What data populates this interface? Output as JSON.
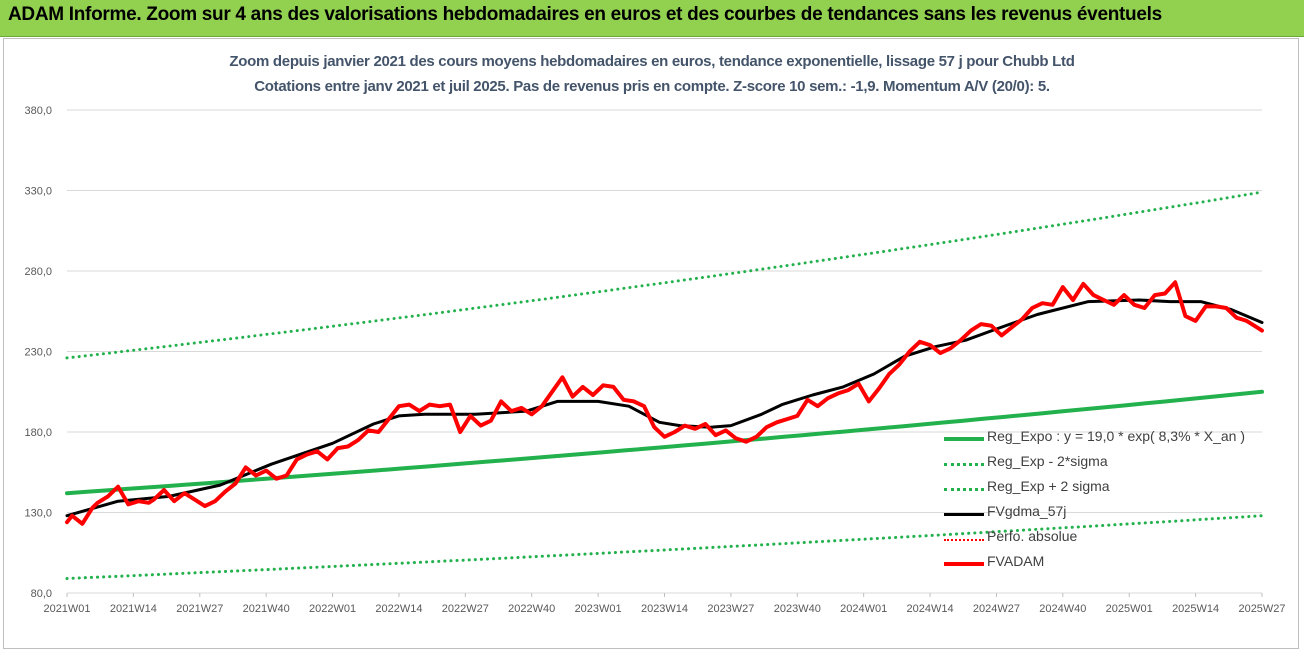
{
  "header": {
    "title": "ADAM Informe. Zoom sur 4 ans des valorisations hebdomadaires en euros et des courbes de tendances sans les revenus éventuels"
  },
  "chart_data": {
    "type": "line",
    "title": "Zoom depuis janvier 2021 des cours moyens hebdomadaires en euros, tendance exponentielle, lissage 57 j pour Chubb Ltd",
    "subtitle": "Cotations entre janv 2021 et juil 2025. Pas de revenus pris en compte. Z-score 10 sem.: -1,9. Momentum A/V (20/0): 5.",
    "ylim": [
      80,
      380
    ],
    "y_ticks": [
      "80,0",
      "130,0",
      "180,0",
      "230,0",
      "280,0",
      "330,0",
      "380,0"
    ],
    "x_ticks": [
      "2021W01",
      "2021W14",
      "2021W27",
      "2021W40",
      "2022W01",
      "2022W14",
      "2022W27",
      "2022W40",
      "2023W01",
      "2023W14",
      "2023W27",
      "2023W40",
      "2024W01",
      "2024W14",
      "2024W27",
      "2024W40",
      "2025W01",
      "2025W14",
      "2025W27"
    ],
    "x_range_weeks": [
      0,
      234
    ],
    "legend": [
      {
        "label": "Reg_Expo : y = 19,0 * exp( 8,3% *  X_an )",
        "style": "solid-green"
      },
      {
        "label": "Reg_Exp - 2*sigma",
        "style": "dotted-green"
      },
      {
        "label": "Reg_Exp + 2 sigma",
        "style": "dotted-green"
      },
      {
        "label": "FVgdma_57j",
        "style": "solid-black"
      },
      {
        "label": "Perfo. absolue",
        "style": "dotted-red"
      },
      {
        "label": "FVADAM",
        "style": "solid-red"
      }
    ],
    "colors": {
      "reg": "#22b14c",
      "fvgdma": "#000000",
      "fvadam": "#ff0000",
      "perfo": "#ff0000"
    },
    "series": [
      {
        "name": "Reg_Expo : y = 19,0 * exp( 8,3% *  X_an )",
        "x": [
          0,
          234
        ],
        "y": [
          142,
          205
        ]
      },
      {
        "name": "Reg_Exp - 2*sigma",
        "x": [
          0,
          234
        ],
        "y": [
          89,
          128
        ]
      },
      {
        "name": "Reg_Exp + 2 sigma",
        "x": [
          0,
          234
        ],
        "y": [
          226,
          329
        ]
      },
      {
        "name": "FVgdma_57j",
        "x": [
          0,
          10,
          20,
          30,
          40,
          52,
          60,
          65,
          70,
          80,
          90,
          96,
          104,
          110,
          116,
          120,
          126,
          130,
          136,
          140,
          146,
          152,
          158,
          164,
          170,
          176,
          182,
          190,
          200,
          210,
          216,
          222,
          228,
          234
        ],
        "y": [
          128,
          137,
          140,
          147,
          160,
          173,
          185,
          190,
          191,
          191,
          193,
          199,
          199,
          196,
          186,
          184,
          183,
          184,
          191,
          197,
          203,
          208,
          216,
          227,
          233,
          237,
          244,
          253,
          261,
          262,
          261,
          261,
          256,
          248
        ]
      },
      {
        "name": "FVADAM",
        "x": [
          0,
          1,
          3,
          5,
          6,
          8,
          10,
          12,
          14,
          16,
          17,
          19,
          21,
          23,
          25,
          27,
          29,
          31,
          33,
          35,
          37,
          39,
          41,
          43,
          45,
          47,
          49,
          51,
          53,
          55,
          57,
          59,
          61,
          63,
          65,
          67,
          69,
          71,
          73,
          75,
          77,
          79,
          81,
          83,
          85,
          87,
          89,
          91,
          93,
          95,
          97,
          99,
          101,
          103,
          105,
          107,
          109,
          111,
          113,
          115,
          117,
          119,
          121,
          123,
          125,
          127,
          129,
          131,
          133,
          135,
          137,
          139,
          141,
          143,
          145,
          147,
          149,
          151,
          153,
          155,
          157,
          159,
          161,
          163,
          165,
          167,
          169,
          171,
          173,
          175,
          177,
          179,
          181,
          183,
          185,
          187,
          189,
          191,
          193,
          195,
          197,
          199,
          201,
          203,
          205,
          207,
          209,
          211,
          213,
          215,
          217,
          219,
          221,
          223,
          225,
          227,
          229,
          231,
          233,
          234
        ],
        "y": [
          124,
          128,
          123,
          133,
          136,
          140,
          146,
          135,
          137,
          136,
          138,
          144,
          137,
          142,
          138,
          134,
          137,
          143,
          148,
          158,
          153,
          156,
          151,
          153,
          163,
          166,
          168,
          163,
          170,
          171,
          175,
          181,
          180,
          188,
          196,
          197,
          193,
          197,
          196,
          197,
          180,
          190,
          184,
          187,
          199,
          193,
          195,
          191,
          196,
          205,
          214,
          202,
          208,
          203,
          209,
          208,
          200,
          199,
          196,
          183,
          177,
          180,
          184,
          182,
          185,
          178,
          181,
          176,
          174,
          177,
          183,
          186,
          188,
          190,
          200,
          196,
          201,
          204,
          206,
          210,
          199,
          207,
          216,
          222,
          230,
          236,
          234,
          229,
          232,
          237,
          243,
          247,
          246,
          240,
          245,
          250,
          257,
          260,
          259,
          270,
          262,
          272,
          265,
          262,
          259,
          265,
          259,
          257,
          265,
          266,
          273,
          252,
          249,
          258,
          258,
          257,
          251,
          249,
          245,
          243
        ]
      }
    ]
  }
}
